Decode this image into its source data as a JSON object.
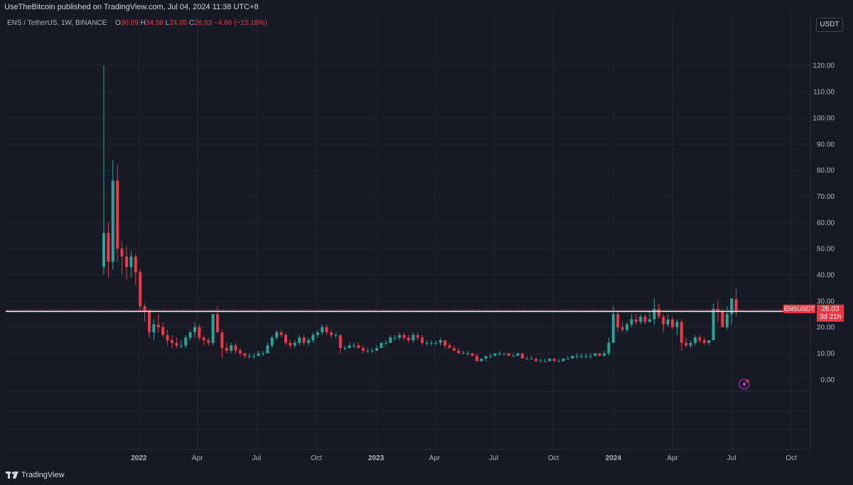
{
  "header": {
    "publisher": "UseTheBitcoin published on TradingView.com, Jul 04, 2024 11:38 UTC+8",
    "symbol_name": "ENS / TetherUS, 1W, BINANCE",
    "ohlc": {
      "o_label": "O",
      "o_value": "30.69",
      "h_label": "H",
      "h_value": "34.58",
      "l_label": "L",
      "l_value": "24.05",
      "c_label": "C",
      "c_value": "26.03",
      "change": "−4.66 (−15.18%)"
    },
    "currency": "USDT"
  },
  "price_label": {
    "symbol": "ENSUSDT",
    "price": "26.03",
    "countdown": "3d 21h"
  },
  "footer": {
    "brand": "TradingView"
  },
  "icons": {
    "brand_logo": "tradingview-logo-icon",
    "flash": "flash-icon"
  },
  "colors": {
    "up": "#26a69a",
    "down": "#f23645",
    "background": "#161a25",
    "grid": "#232632",
    "price_line": "#ffffff"
  },
  "chart_data": {
    "type": "candlestick",
    "title": "",
    "interval": "1W",
    "y_axis": {
      "ylim": [
        -4.5,
        132
      ],
      "ticks": [
        0,
        10,
        20,
        30,
        40,
        50,
        60,
        70,
        80,
        90,
        100,
        110,
        120
      ],
      "tick_labels": [
        "0.00",
        "10.00",
        "20.00",
        "30.00",
        "40.00",
        "50.00",
        "60.00",
        "70.00",
        "80.00",
        "90.00",
        "100.00",
        "110.00",
        "120.00"
      ]
    },
    "x_axis": {
      "start": "2021-11-08",
      "end": "2024-10-28",
      "ticks": [
        "2022-01-01",
        "2022-04-01",
        "2022-07-01",
        "2022-10-01",
        "2023-01-01",
        "2023-04-01",
        "2023-07-01",
        "2023-10-01",
        "2024-01-01",
        "2024-04-01",
        "2024-07-01",
        "2024-10-01"
      ],
      "tick_labels": [
        "2022",
        "Apr",
        "Jul",
        "Oct",
        "2023",
        "Apr",
        "Jul",
        "Oct",
        "2024",
        "Apr",
        "Jul",
        "Oct"
      ]
    },
    "grid": true,
    "last_price": 26.03,
    "candles": [
      {
        "t": "2021-11-08",
        "o": 43,
        "h": 120,
        "l": 40,
        "c": 56
      },
      {
        "t": "2021-11-15",
        "o": 56,
        "h": 60,
        "l": 39,
        "c": 45
      },
      {
        "t": "2021-11-22",
        "o": 45,
        "h": 84,
        "l": 42,
        "c": 76
      },
      {
        "t": "2021-11-29",
        "o": 76,
        "h": 82,
        "l": 45,
        "c": 50
      },
      {
        "t": "2021-12-06",
        "o": 50,
        "h": 53,
        "l": 40,
        "c": 47
      },
      {
        "t": "2021-12-13",
        "o": 47,
        "h": 51,
        "l": 38,
        "c": 43
      },
      {
        "t": "2021-12-20",
        "o": 43,
        "h": 49,
        "l": 39,
        "c": 47
      },
      {
        "t": "2021-12-27",
        "o": 47,
        "h": 48,
        "l": 36,
        "c": 41
      },
      {
        "t": "2022-01-03",
        "o": 41,
        "h": 42,
        "l": 26,
        "c": 28
      },
      {
        "t": "2022-01-10",
        "o": 28,
        "h": 29,
        "l": 22,
        "c": 26
      },
      {
        "t": "2022-01-17",
        "o": 26,
        "h": 27,
        "l": 16,
        "c": 18
      },
      {
        "t": "2022-01-24",
        "o": 18,
        "h": 23,
        "l": 15,
        "c": 21
      },
      {
        "t": "2022-01-31",
        "o": 21,
        "h": 25,
        "l": 18,
        "c": 20
      },
      {
        "t": "2022-02-07",
        "o": 20,
        "h": 22,
        "l": 16,
        "c": 17
      },
      {
        "t": "2022-02-14",
        "o": 17,
        "h": 19,
        "l": 13,
        "c": 15
      },
      {
        "t": "2022-02-21",
        "o": 15,
        "h": 17,
        "l": 12,
        "c": 14
      },
      {
        "t": "2022-02-28",
        "o": 14,
        "h": 16,
        "l": 12,
        "c": 13
      },
      {
        "t": "2022-03-07",
        "o": 13,
        "h": 15,
        "l": 12,
        "c": 13
      },
      {
        "t": "2022-03-14",
        "o": 13,
        "h": 17,
        "l": 12,
        "c": 16
      },
      {
        "t": "2022-03-21",
        "o": 16,
        "h": 19,
        "l": 15,
        "c": 18
      },
      {
        "t": "2022-03-28",
        "o": 18,
        "h": 22,
        "l": 16,
        "c": 20
      },
      {
        "t": "2022-04-04",
        "o": 20,
        "h": 21,
        "l": 15,
        "c": 16
      },
      {
        "t": "2022-04-11",
        "o": 16,
        "h": 17,
        "l": 13,
        "c": 15
      },
      {
        "t": "2022-04-18",
        "o": 15,
        "h": 16,
        "l": 13,
        "c": 14
      },
      {
        "t": "2022-04-25",
        "o": 14,
        "h": 25,
        "l": 13,
        "c": 25
      },
      {
        "t": "2022-05-02",
        "o": 25,
        "h": 28,
        "l": 18,
        "c": 18
      },
      {
        "t": "2022-05-09",
        "o": 18,
        "h": 19,
        "l": 8,
        "c": 12
      },
      {
        "t": "2022-05-16",
        "o": 12,
        "h": 14,
        "l": 10,
        "c": 11
      },
      {
        "t": "2022-05-23",
        "o": 11,
        "h": 14,
        "l": 10,
        "c": 13
      },
      {
        "t": "2022-05-30",
        "o": 13,
        "h": 14,
        "l": 10,
        "c": 11
      },
      {
        "t": "2022-06-06",
        "o": 11,
        "h": 12,
        "l": 9,
        "c": 10
      },
      {
        "t": "2022-06-13",
        "o": 10,
        "h": 10,
        "l": 8,
        "c": 9
      },
      {
        "t": "2022-06-20",
        "o": 9,
        "h": 10,
        "l": 8,
        "c": 9
      },
      {
        "t": "2022-06-27",
        "o": 9,
        "h": 10,
        "l": 8,
        "c": 9
      },
      {
        "t": "2022-07-04",
        "o": 9,
        "h": 11,
        "l": 9,
        "c": 10
      },
      {
        "t": "2022-07-11",
        "o": 10,
        "h": 11,
        "l": 9,
        "c": 10
      },
      {
        "t": "2022-07-18",
        "o": 10,
        "h": 14,
        "l": 10,
        "c": 13
      },
      {
        "t": "2022-07-25",
        "o": 13,
        "h": 17,
        "l": 12,
        "c": 16
      },
      {
        "t": "2022-08-01",
        "o": 16,
        "h": 19,
        "l": 15,
        "c": 18
      },
      {
        "t": "2022-08-08",
        "o": 18,
        "h": 19,
        "l": 16,
        "c": 17
      },
      {
        "t": "2022-08-15",
        "o": 17,
        "h": 18,
        "l": 13,
        "c": 14
      },
      {
        "t": "2022-08-22",
        "o": 14,
        "h": 15,
        "l": 12,
        "c": 13
      },
      {
        "t": "2022-08-29",
        "o": 13,
        "h": 15,
        "l": 12,
        "c": 14
      },
      {
        "t": "2022-09-05",
        "o": 14,
        "h": 17,
        "l": 13,
        "c": 16
      },
      {
        "t": "2022-09-12",
        "o": 16,
        "h": 17,
        "l": 13,
        "c": 14
      },
      {
        "t": "2022-09-19",
        "o": 14,
        "h": 16,
        "l": 13,
        "c": 15
      },
      {
        "t": "2022-09-26",
        "o": 15,
        "h": 18,
        "l": 14,
        "c": 17
      },
      {
        "t": "2022-10-03",
        "o": 17,
        "h": 19,
        "l": 16,
        "c": 18
      },
      {
        "t": "2022-10-10",
        "o": 18,
        "h": 21,
        "l": 17,
        "c": 20
      },
      {
        "t": "2022-10-17",
        "o": 20,
        "h": 21,
        "l": 17,
        "c": 18
      },
      {
        "t": "2022-10-24",
        "o": 18,
        "h": 19,
        "l": 16,
        "c": 17
      },
      {
        "t": "2022-10-31",
        "o": 17,
        "h": 18,
        "l": 16,
        "c": 17
      },
      {
        "t": "2022-11-07",
        "o": 17,
        "h": 17,
        "l": 10,
        "c": 12
      },
      {
        "t": "2022-11-14",
        "o": 12,
        "h": 13,
        "l": 11,
        "c": 12
      },
      {
        "t": "2022-11-21",
        "o": 12,
        "h": 14,
        "l": 12,
        "c": 13
      },
      {
        "t": "2022-11-28",
        "o": 13,
        "h": 14,
        "l": 12,
        "c": 13
      },
      {
        "t": "2022-12-05",
        "o": 13,
        "h": 14,
        "l": 12,
        "c": 12
      },
      {
        "t": "2022-12-12",
        "o": 12,
        "h": 13,
        "l": 10,
        "c": 11
      },
      {
        "t": "2022-12-19",
        "o": 11,
        "h": 12,
        "l": 10,
        "c": 11
      },
      {
        "t": "2022-12-26",
        "o": 11,
        "h": 12,
        "l": 10,
        "c": 11
      },
      {
        "t": "2023-01-02",
        "o": 11,
        "h": 13,
        "l": 11,
        "c": 12
      },
      {
        "t": "2023-01-09",
        "o": 12,
        "h": 14,
        "l": 12,
        "c": 14
      },
      {
        "t": "2023-01-16",
        "o": 14,
        "h": 15,
        "l": 13,
        "c": 14
      },
      {
        "t": "2023-01-23",
        "o": 14,
        "h": 17,
        "l": 14,
        "c": 16
      },
      {
        "t": "2023-01-30",
        "o": 16,
        "h": 17,
        "l": 15,
        "c": 16
      },
      {
        "t": "2023-02-06",
        "o": 16,
        "h": 18,
        "l": 15,
        "c": 17
      },
      {
        "t": "2023-02-13",
        "o": 17,
        "h": 18,
        "l": 15,
        "c": 16
      },
      {
        "t": "2023-02-20",
        "o": 16,
        "h": 17,
        "l": 14,
        "c": 15
      },
      {
        "t": "2023-02-27",
        "o": 15,
        "h": 18,
        "l": 14,
        "c": 17
      },
      {
        "t": "2023-03-06",
        "o": 17,
        "h": 18,
        "l": 15,
        "c": 16
      },
      {
        "t": "2023-03-13",
        "o": 16,
        "h": 17,
        "l": 13,
        "c": 14
      },
      {
        "t": "2023-03-20",
        "o": 14,
        "h": 15,
        "l": 13,
        "c": 14
      },
      {
        "t": "2023-03-27",
        "o": 14,
        "h": 15,
        "l": 13,
        "c": 14
      },
      {
        "t": "2023-04-03",
        "o": 14,
        "h": 15,
        "l": 13,
        "c": 14
      },
      {
        "t": "2023-04-10",
        "o": 14,
        "h": 16,
        "l": 13,
        "c": 15
      },
      {
        "t": "2023-04-17",
        "o": 15,
        "h": 15,
        "l": 12,
        "c": 13
      },
      {
        "t": "2023-04-24",
        "o": 13,
        "h": 14,
        "l": 12,
        "c": 12
      },
      {
        "t": "2023-05-01",
        "o": 12,
        "h": 13,
        "l": 11,
        "c": 11
      },
      {
        "t": "2023-05-08",
        "o": 11,
        "h": 12,
        "l": 10,
        "c": 10
      },
      {
        "t": "2023-05-15",
        "o": 10,
        "h": 11,
        "l": 10,
        "c": 10
      },
      {
        "t": "2023-05-22",
        "o": 10,
        "h": 11,
        "l": 9,
        "c": 10
      },
      {
        "t": "2023-05-29",
        "o": 10,
        "h": 10,
        "l": 9,
        "c": 9
      },
      {
        "t": "2023-06-05",
        "o": 9,
        "h": 10,
        "l": 7,
        "c": 7
      },
      {
        "t": "2023-06-12",
        "o": 7,
        "h": 8,
        "l": 7,
        "c": 8
      },
      {
        "t": "2023-06-19",
        "o": 8,
        "h": 9,
        "l": 7,
        "c": 9
      },
      {
        "t": "2023-06-26",
        "o": 9,
        "h": 10,
        "l": 8,
        "c": 9
      },
      {
        "t": "2023-07-03",
        "o": 9,
        "h": 10,
        "l": 9,
        "c": 10
      },
      {
        "t": "2023-07-10",
        "o": 10,
        "h": 11,
        "l": 9,
        "c": 10
      },
      {
        "t": "2023-07-17",
        "o": 10,
        "h": 10,
        "l": 9,
        "c": 10
      },
      {
        "t": "2023-07-24",
        "o": 10,
        "h": 10,
        "l": 9,
        "c": 9
      },
      {
        "t": "2023-07-31",
        "o": 9,
        "h": 10,
        "l": 9,
        "c": 9
      },
      {
        "t": "2023-08-07",
        "o": 9,
        "h": 10,
        "l": 9,
        "c": 10
      },
      {
        "t": "2023-08-14",
        "o": 10,
        "h": 10,
        "l": 8,
        "c": 8
      },
      {
        "t": "2023-08-21",
        "o": 8,
        "h": 9,
        "l": 8,
        "c": 8
      },
      {
        "t": "2023-08-28",
        "o": 8,
        "h": 9,
        "l": 8,
        "c": 8
      },
      {
        "t": "2023-09-04",
        "o": 8,
        "h": 8,
        "l": 7,
        "c": 7
      },
      {
        "t": "2023-09-11",
        "o": 7,
        "h": 8,
        "l": 7,
        "c": 7
      },
      {
        "t": "2023-09-18",
        "o": 7,
        "h": 8,
        "l": 7,
        "c": 7
      },
      {
        "t": "2023-09-25",
        "o": 7,
        "h": 8,
        "l": 7,
        "c": 8
      },
      {
        "t": "2023-10-02",
        "o": 8,
        "h": 8,
        "l": 7,
        "c": 7
      },
      {
        "t": "2023-10-09",
        "o": 7,
        "h": 8,
        "l": 7,
        "c": 7
      },
      {
        "t": "2023-10-16",
        "o": 7,
        "h": 8,
        "l": 7,
        "c": 8
      },
      {
        "t": "2023-10-23",
        "o": 8,
        "h": 9,
        "l": 8,
        "c": 8
      },
      {
        "t": "2023-10-30",
        "o": 8,
        "h": 9,
        "l": 8,
        "c": 9
      },
      {
        "t": "2023-11-06",
        "o": 9,
        "h": 10,
        "l": 8,
        "c": 9
      },
      {
        "t": "2023-11-13",
        "o": 9,
        "h": 10,
        "l": 8,
        "c": 9
      },
      {
        "t": "2023-11-20",
        "o": 9,
        "h": 10,
        "l": 8,
        "c": 9
      },
      {
        "t": "2023-11-27",
        "o": 9,
        "h": 10,
        "l": 8,
        "c": 9
      },
      {
        "t": "2023-12-04",
        "o": 9,
        "h": 10,
        "l": 9,
        "c": 10
      },
      {
        "t": "2023-12-11",
        "o": 10,
        "h": 10,
        "l": 9,
        "c": 9
      },
      {
        "t": "2023-12-18",
        "o": 9,
        "h": 11,
        "l": 9,
        "c": 10
      },
      {
        "t": "2023-12-25",
        "o": 10,
        "h": 16,
        "l": 9,
        "c": 14
      },
      {
        "t": "2024-01-01",
        "o": 14,
        "h": 28,
        "l": 14,
        "c": 25
      },
      {
        "t": "2024-01-08",
        "o": 25,
        "h": 26,
        "l": 18,
        "c": 20
      },
      {
        "t": "2024-01-15",
        "o": 20,
        "h": 22,
        "l": 18,
        "c": 19
      },
      {
        "t": "2024-01-22",
        "o": 19,
        "h": 22,
        "l": 18,
        "c": 21
      },
      {
        "t": "2024-01-29",
        "o": 21,
        "h": 25,
        "l": 20,
        "c": 23
      },
      {
        "t": "2024-02-05",
        "o": 23,
        "h": 25,
        "l": 21,
        "c": 22
      },
      {
        "t": "2024-02-12",
        "o": 22,
        "h": 25,
        "l": 21,
        "c": 24
      },
      {
        "t": "2024-02-19",
        "o": 24,
        "h": 25,
        "l": 21,
        "c": 22
      },
      {
        "t": "2024-02-26",
        "o": 22,
        "h": 26,
        "l": 22,
        "c": 23
      },
      {
        "t": "2024-03-04",
        "o": 23,
        "h": 31,
        "l": 21,
        "c": 27
      },
      {
        "t": "2024-03-11",
        "o": 27,
        "h": 29,
        "l": 23,
        "c": 24
      },
      {
        "t": "2024-03-18",
        "o": 24,
        "h": 25,
        "l": 18,
        "c": 21
      },
      {
        "t": "2024-03-25",
        "o": 21,
        "h": 25,
        "l": 20,
        "c": 23
      },
      {
        "t": "2024-04-01",
        "o": 23,
        "h": 24,
        "l": 19,
        "c": 20
      },
      {
        "t": "2024-04-08",
        "o": 20,
        "h": 23,
        "l": 17,
        "c": 22
      },
      {
        "t": "2024-04-15",
        "o": 22,
        "h": 23,
        "l": 11,
        "c": 14
      },
      {
        "t": "2024-04-22",
        "o": 14,
        "h": 16,
        "l": 12,
        "c": 13
      },
      {
        "t": "2024-04-29",
        "o": 13,
        "h": 15,
        "l": 12,
        "c": 14
      },
      {
        "t": "2024-05-06",
        "o": 14,
        "h": 17,
        "l": 13,
        "c": 16
      },
      {
        "t": "2024-05-13",
        "o": 16,
        "h": 17,
        "l": 14,
        "c": 15
      },
      {
        "t": "2024-05-20",
        "o": 15,
        "h": 16,
        "l": 13,
        "c": 14
      },
      {
        "t": "2024-05-27",
        "o": 14,
        "h": 15,
        "l": 13,
        "c": 15
      },
      {
        "t": "2024-06-03",
        "o": 15,
        "h": 29,
        "l": 15,
        "c": 27
      },
      {
        "t": "2024-06-10",
        "o": 27,
        "h": 30,
        "l": 22,
        "c": 26
      },
      {
        "t": "2024-06-17",
        "o": 26,
        "h": 27,
        "l": 20,
        "c": 20
      },
      {
        "t": "2024-06-24",
        "o": 20,
        "h": 28,
        "l": 19,
        "c": 25
      },
      {
        "t": "2024-07-01",
        "o": 25,
        "h": 31,
        "l": 21,
        "c": 31
      },
      {
        "t": "2024-07-08",
        "o": 30.69,
        "h": 34.58,
        "l": 24.05,
        "c": 26.03
      }
    ]
  }
}
